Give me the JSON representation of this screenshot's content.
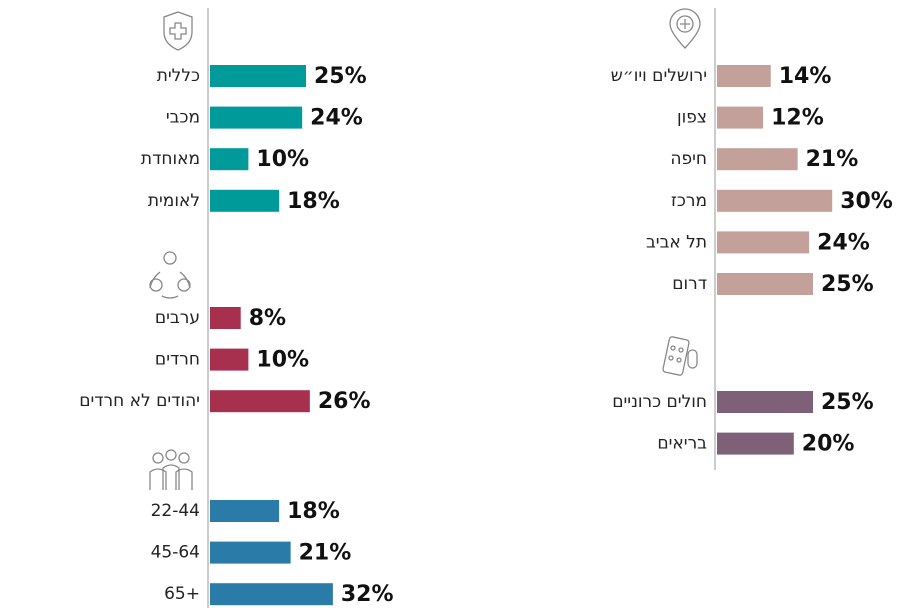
{
  "chart_data": [
    {
      "type": "bar",
      "orientation": "horizontal",
      "categories": [
        "כללית",
        "מכבי",
        "מאוחדת",
        "לאומית"
      ],
      "values": [
        25,
        24,
        10,
        18
      ],
      "value_labels": [
        "25%",
        "24%",
        "10%",
        "18%"
      ],
      "color": "#009a9a"
    },
    {
      "type": "bar",
      "orientation": "horizontal",
      "categories": [
        "ערבים",
        "חרדים",
        "יהודים לא חרדים"
      ],
      "values": [
        8,
        10,
        26
      ],
      "value_labels": [
        "8%",
        "10%",
        "26%"
      ],
      "color": "#a8304f"
    },
    {
      "type": "bar",
      "orientation": "horizontal",
      "categories": [
        "22-44",
        "45-64",
        "65+"
      ],
      "values": [
        18,
        21,
        32
      ],
      "value_labels": [
        "18%",
        "21%",
        "32%"
      ],
      "color": "#2a7ba8"
    },
    {
      "type": "bar",
      "orientation": "horizontal",
      "categories": [
        "ירושלים ויו״ש",
        "צפון",
        "חיפה",
        "מרכז",
        "תל אביב",
        "דרום"
      ],
      "values": [
        14,
        12,
        21,
        30,
        24,
        25
      ],
      "value_labels": [
        "14%",
        "12%",
        "21%",
        "30%",
        "24%",
        "25%"
      ],
      "color": "#c4a09a"
    },
    {
      "type": "bar",
      "orientation": "horizontal",
      "categories": [
        "חולים כרוניים",
        "בריאים"
      ],
      "values": [
        25,
        20
      ],
      "value_labels": [
        "25%",
        "20%"
      ],
      "color": "#7e6079"
    }
  ]
}
